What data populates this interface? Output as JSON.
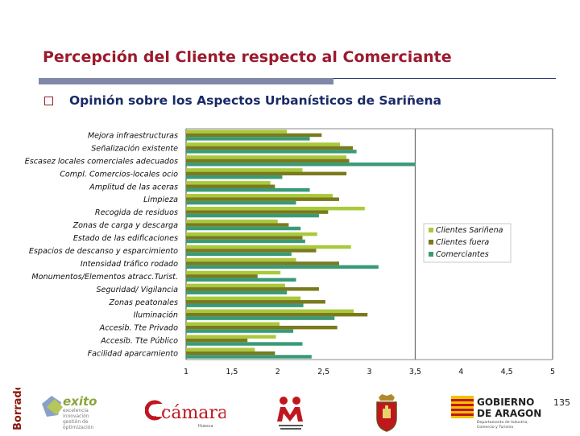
{
  "header": {
    "title": "Percepción del Cliente respecto al Comerciante",
    "subtitle": "Opinión sobre los Aspectos Urbanísticos de Sariñena"
  },
  "colors": {
    "title": "#9b1b2e",
    "subtitle": "#1a2a66",
    "series": [
      "#a9c93a",
      "#7a7a1e",
      "#3a9a78"
    ]
  },
  "chart_data": {
    "type": "bar",
    "orientation": "horizontal",
    "title": "",
    "xlabel": "",
    "ylabel": "",
    "xlim": [
      1,
      5
    ],
    "x_ticks": [
      "1",
      "1,5",
      "2",
      "2,5",
      "3",
      "3,5",
      "4",
      "4,5",
      "5"
    ],
    "grid": "vertical",
    "legend_position": "right",
    "categories": [
      "Mejora infraestructuras",
      "Señalización existente",
      "Escasez locales comerciales adecuados",
      "Compl. Comercios-locales ocio",
      "Amplitud de las aceras",
      "Limpieza",
      "Recogida de residuos",
      "Zonas de carga y descarga",
      "Estado de las edificaciones",
      "Espacios de descanso y esparcimiento",
      "Intensidad tráfico rodado",
      "Monumentos/Elementos atracc.Turist.",
      "Seguridad/ Vigilancia",
      "Zonas peatonales",
      "Iluminación",
      "Accesib. Tte Privado",
      "Accesib. Tte Público",
      "Facilidad aparcamiento"
    ],
    "series": [
      {
        "name": "Clientes Sariñena",
        "values": [
          2.1,
          2.68,
          2.75,
          2.27,
          1.92,
          2.6,
          2.95,
          2.0,
          2.43,
          2.8,
          2.2,
          2.03,
          2.08,
          2.25,
          2.83,
          2.02,
          1.98,
          1.75
        ]
      },
      {
        "name": "Clientes fuera",
        "values": [
          2.48,
          2.82,
          2.78,
          2.75,
          1.97,
          2.67,
          2.55,
          2.12,
          2.27,
          2.42,
          2.67,
          1.78,
          2.45,
          2.52,
          2.98,
          2.65,
          1.67,
          1.97
        ]
      },
      {
        "name": "Comerciantes",
        "values": [
          2.35,
          2.86,
          3.5,
          2.05,
          2.35,
          2.2,
          2.45,
          2.25,
          2.3,
          2.15,
          3.1,
          2.2,
          2.1,
          2.28,
          2.62,
          2.17,
          2.27,
          2.37
        ]
      }
    ]
  },
  "footer": {
    "page_number": "135",
    "borrador": "Borrador",
    "logo_exito": "exito",
    "logo_exito_tagline": [
      "excelencia",
      "innovación",
      "gestión de",
      "optimización"
    ],
    "logo_camara": "cámara",
    "logo_camara_sub": "Huesca",
    "logo_gobierno_line1": "GOBIERNO",
    "logo_gobierno_line2": "DE ARAGON",
    "logo_gobierno_sub1": "Departamento de Industria,",
    "logo_gobierno_sub2": "Comercio y Turismo"
  }
}
